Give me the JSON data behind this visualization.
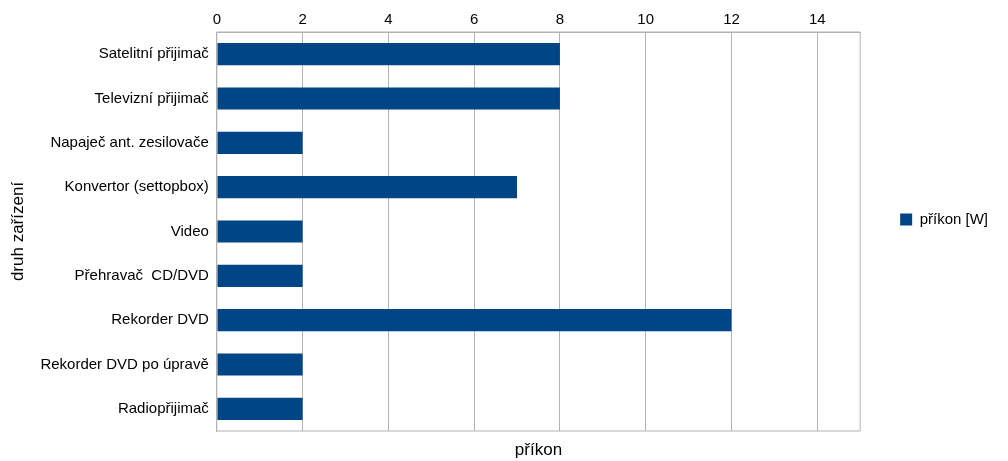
{
  "chart_data": {
    "type": "bar",
    "orientation": "horizontal",
    "xlabel": "příkon",
    "ylabel": "druh zařízení",
    "categories": [
      "Satelitní přijimač",
      "Televizní přijimač",
      "Napaječ ant. zesilovače",
      "Konvertor (settopbox)",
      "Video",
      "Přehravač  CD/DVD",
      "Rekorder DVD",
      "Rekorder DVD po úpravě",
      "Radiopřijimač"
    ],
    "series": [
      {
        "name": "příkon [W]",
        "color": "#004586",
        "values": [
          8,
          8,
          2,
          7,
          2,
          2,
          12,
          2,
          2
        ]
      }
    ],
    "xlim": [
      0,
      15
    ],
    "xticks": [
      0,
      2,
      4,
      6,
      8,
      10,
      12,
      14
    ],
    "grid": "x",
    "legend": "right"
  }
}
